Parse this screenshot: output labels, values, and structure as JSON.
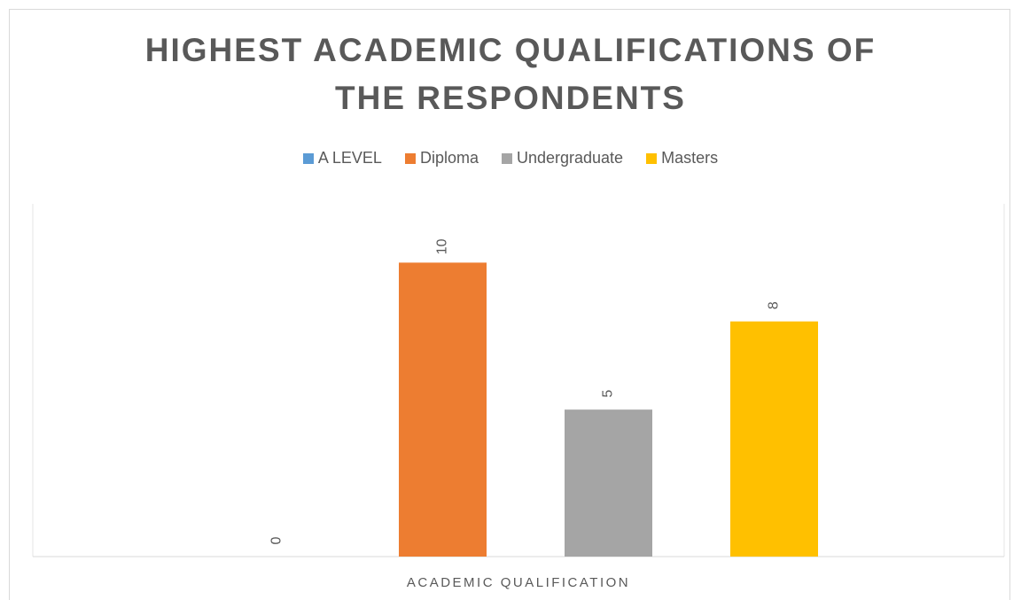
{
  "chart_data": {
    "type": "bar",
    "title": "HIGHEST ACADEMIC QUALIFICATIONS OF THE RESPONDENTS",
    "categories": [
      "ACADEMIC QUALIFICATION"
    ],
    "series": [
      {
        "name": "A LEVEL",
        "color": "#5b9bd5",
        "values": [
          0
        ]
      },
      {
        "name": "Diploma",
        "color": "#ed7d31",
        "values": [
          10
        ]
      },
      {
        "name": "Undergraduate",
        "color": "#a5a5a5",
        "values": [
          5
        ]
      },
      {
        "name": "Masters",
        "color": "#ffc000",
        "values": [
          8
        ]
      }
    ],
    "ylim": [
      0,
      12
    ],
    "legend": "top",
    "grid": false
  }
}
